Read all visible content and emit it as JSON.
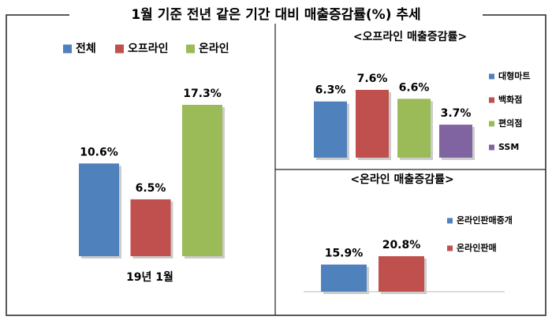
{
  "title": "1월 기준 전년 같은 기간 대비 매출증감률(%) 추세",
  "chart_data": [
    {
      "type": "bar",
      "categories": [
        "19년 1월"
      ],
      "series": [
        {
          "name": "전체",
          "color": "#4f81bd",
          "values": [
            10.6
          ],
          "value_labels": [
            "10.6%"
          ]
        },
        {
          "name": "오프라인",
          "color": "#c0504d",
          "values": [
            6.5
          ],
          "value_labels": [
            "6.5%"
          ]
        },
        {
          "name": "온라인",
          "color": "#9bbb59",
          "values": [
            17.3
          ],
          "value_labels": [
            "17.3%"
          ]
        }
      ]
    },
    {
      "type": "bar",
      "title": "<오프라인 매출증감률>",
      "series": [
        {
          "name": "대형마트",
          "color": "#4f81bd",
          "values": [
            6.3
          ],
          "value_labels": [
            "6.3%"
          ]
        },
        {
          "name": "백화점",
          "color": "#c0504d",
          "values": [
            7.6
          ],
          "value_labels": [
            "7.6%"
          ]
        },
        {
          "name": "편의점",
          "color": "#9bbb59",
          "values": [
            6.6
          ],
          "value_labels": [
            "6.6%"
          ]
        },
        {
          "name": "SSM",
          "color": "#8064a2",
          "values": [
            3.7
          ],
          "value_labels": [
            "3.7%"
          ]
        }
      ]
    },
    {
      "type": "bar",
      "title": "<온라인 매출증감률>",
      "series": [
        {
          "name": "온라인판매중개",
          "color": "#4f81bd",
          "values": [
            15.9
          ],
          "value_labels": [
            "15.9%"
          ]
        },
        {
          "name": "온라인판매",
          "color": "#c0504d",
          "values": [
            20.8
          ],
          "value_labels": [
            "20.8%"
          ]
        }
      ]
    }
  ]
}
